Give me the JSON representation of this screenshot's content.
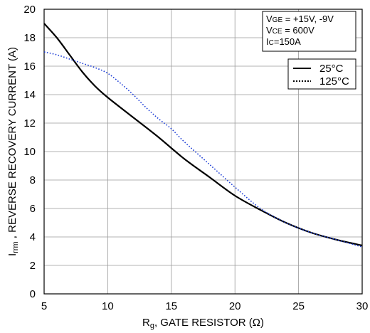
{
  "chart_data": {
    "type": "line",
    "xlabel": {
      "main": "R",
      "sub": "g",
      "rest": ", GATE RESISTOR (Ω)"
    },
    "ylabel": {
      "main": "I",
      "sub": "rrm",
      "rest": " , REVERSE RECOVERY CURRENT (A)"
    },
    "xlim": [
      5,
      30
    ],
    "ylim": [
      0,
      20
    ],
    "x_ticks": [
      "5",
      "10",
      "15",
      "20",
      "25",
      "30"
    ],
    "y_ticks": [
      "0",
      "2",
      "4",
      "6",
      "8",
      "10",
      "12",
      "14",
      "16",
      "18",
      "20"
    ],
    "grid": true,
    "conditions": [
      {
        "main": "V",
        "sub": "GE",
        "rest": " = +15V, -9V"
      },
      {
        "main": "V",
        "sub": "CE",
        "rest": " = 600V"
      },
      {
        "main": "I",
        "sub": "C",
        "rest": "=150A"
      }
    ],
    "legend_position": "top-right",
    "series": [
      {
        "name": "25°C",
        "style": "solid",
        "color": "#000000",
        "x": [
          5,
          6,
          7,
          8,
          9,
          10,
          12,
          14,
          16,
          18,
          20,
          22,
          24,
          26,
          28,
          30
        ],
        "y": [
          19.0,
          18.0,
          16.8,
          15.6,
          14.6,
          13.8,
          12.4,
          11.0,
          9.5,
          8.2,
          6.9,
          5.9,
          5.0,
          4.3,
          3.8,
          3.4
        ]
      },
      {
        "name": "125°C",
        "style": "dotted",
        "color": "#1f3fd6",
        "x": [
          5,
          6,
          7,
          8,
          9,
          10,
          11,
          12,
          13,
          14,
          15,
          16,
          18,
          20,
          22,
          24,
          26,
          28,
          30
        ],
        "y": [
          17.0,
          16.8,
          16.5,
          16.2,
          15.9,
          15.5,
          14.8,
          14.0,
          13.1,
          12.3,
          11.6,
          10.7,
          9.1,
          7.5,
          6.0,
          5.0,
          4.3,
          3.8,
          3.3
        ]
      }
    ]
  }
}
